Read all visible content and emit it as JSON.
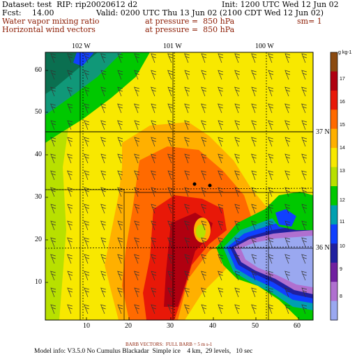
{
  "header": {
    "dataset": "Dataset: test  RIP: rip20020612 d2",
    "init": "Init: 1200 UTC Wed 12 Jun 02",
    "fcst_label": "Fcst:",
    "fcst_value": "14.00",
    "valid": "Valid: 0200 UTC Thu 13 Jun 02 (2100 CDT Wed 12 Jun 02)",
    "field1_name": "Water vapor mixing ratio",
    "field1_level": "at pressure =  850 hPa",
    "field1_sm": "sm= 1",
    "field2_name": "Horizontal wind vectors",
    "field2_level": "at pressure =  850 hPa"
  },
  "map": {
    "lon_labels": [
      "102 W",
      "101 W",
      "100 W"
    ],
    "lat_labels": [
      "37 N",
      "36 N"
    ],
    "y_ticks": [
      "60",
      "50",
      "40",
      "30",
      "20",
      "10"
    ],
    "x_ticks": [
      "10",
      "20",
      "30",
      "40",
      "50",
      "60"
    ],
    "colors": {
      "light_blue": "#9aa8f0",
      "purple": "#b070d0",
      "blue": "#1040ff",
      "green": "#00c800",
      "yellow_green": "#b8e000",
      "yellow": "#f8e800",
      "orange": "#ffb000",
      "orange_red": "#ff6a00",
      "red": "#e81808",
      "dark_red": "#b00010",
      "teal": "#109878",
      "dark_green": "#0a6f50"
    }
  },
  "colorbar": {
    "unit": "g kg-1",
    "labels": [
      "17",
      "16",
      "15",
      "14",
      "13",
      "12",
      "11",
      "10",
      "9",
      "8"
    ],
    "colors": [
      "#8b4a10",
      "#b00010",
      "#e81808",
      "#ff6a00",
      "#ffb000",
      "#f8e800",
      "#b8e000",
      "#00c800",
      "#00a0b0",
      "#1040ff",
      "#2020a0",
      "#7020a0",
      "#b070d0",
      "#9aa8f0"
    ]
  },
  "footer": {
    "barb_note": "BARB VECTORS:  FULL BARB = 5 m s-1",
    "model_info": "Model info: V3.5.0 No Cumulus Blackadar  Simple ice    4 km,  29 levels,   10 sec"
  }
}
